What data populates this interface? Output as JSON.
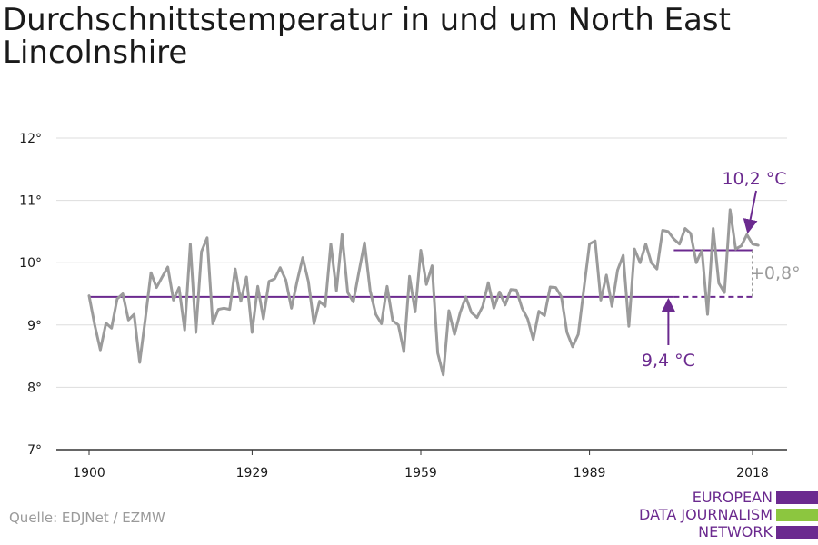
{
  "title": {
    "line1": "Durchschnittstemperatur in und um North East",
    "line2": "Lincolnshire"
  },
  "source": "Quelle: EDJNet / EZMW",
  "logo": {
    "lines": [
      "EUROPEAN",
      "DATA JOURNALISM",
      "NETWORK"
    ],
    "colors": [
      "#6b2a8f",
      "#8cc63f",
      "#6b2a8f"
    ]
  },
  "colors": {
    "series": "#9b9b9b",
    "accent": "#6b2a8f",
    "grid": "#dddddd",
    "axis": "#333333",
    "text": "#1a1a1a"
  },
  "chart_data": {
    "type": "line",
    "title": "Durchschnittstemperatur in und um North East Lincolnshire",
    "xlabel": "",
    "ylabel": "",
    "xlim": [
      1896,
      2024
    ],
    "ylim": [
      7,
      12
    ],
    "grid": true,
    "x_ticks": [
      1900,
      1929,
      1959,
      1989,
      2018
    ],
    "y_ticks": [
      {
        "value": 7,
        "label": "7°"
      },
      {
        "value": 8,
        "label": "8°"
      },
      {
        "value": 9,
        "label": "9°"
      },
      {
        "value": 10,
        "label": "10°"
      },
      {
        "value": 11,
        "label": "11°"
      },
      {
        "value": 12,
        "label": "12°"
      }
    ],
    "series": [
      {
        "x": [
          1900,
          1901,
          1902,
          1903,
          1904,
          1905,
          1906,
          1907,
          1908,
          1909,
          1910,
          1911,
          1912,
          1913,
          1914,
          1915,
          1916,
          1917,
          1918,
          1919,
          1920,
          1921,
          1922,
          1923,
          1924,
          1925,
          1926,
          1927,
          1928,
          1929,
          1930,
          1931,
          1932,
          1933,
          1934,
          1935,
          1936,
          1937,
          1938,
          1939,
          1940,
          1941,
          1942,
          1943,
          1944,
          1945,
          1946,
          1947,
          1948,
          1949,
          1950,
          1951,
          1952,
          1953,
          1954,
          1955,
          1956,
          1957,
          1958,
          1959,
          1960,
          1961,
          1962,
          1963,
          1964,
          1965,
          1966,
          1967,
          1968,
          1969,
          1970,
          1971,
          1972,
          1973,
          1974,
          1975,
          1976,
          1977,
          1978,
          1979,
          1980,
          1981,
          1982,
          1983,
          1984,
          1985,
          1986,
          1987,
          1988,
          1989,
          1990,
          1991,
          1992,
          1993,
          1994,
          1995,
          1996,
          1997,
          1998,
          1999,
          2000,
          2001,
          2002,
          2003,
          2004,
          2005,
          2006,
          2007,
          2008,
          2009,
          2010,
          2011,
          2012,
          2013,
          2014,
          2015,
          2016,
          2017,
          2018,
          2019
        ],
        "values": [
          9.47,
          9.0,
          8.6,
          9.03,
          8.95,
          9.42,
          9.5,
          9.08,
          9.17,
          8.4,
          9.1,
          9.84,
          9.6,
          9.77,
          9.93,
          9.4,
          9.6,
          8.92,
          10.3,
          8.88,
          10.18,
          10.4,
          9.02,
          9.25,
          9.27,
          9.25,
          9.9,
          9.38,
          9.77,
          8.88,
          9.62,
          9.1,
          9.7,
          9.74,
          9.92,
          9.72,
          9.27,
          9.7,
          10.08,
          9.7,
          9.02,
          9.38,
          9.3,
          10.3,
          9.55,
          10.45,
          9.52,
          9.37,
          9.85,
          10.32,
          9.55,
          9.17,
          9.02,
          9.62,
          9.07,
          9.0,
          8.57,
          9.78,
          9.21,
          10.2,
          9.65,
          9.95,
          8.55,
          8.2,
          9.23,
          8.85,
          9.2,
          9.45,
          9.2,
          9.12,
          9.3,
          9.68,
          9.27,
          9.53,
          9.32,
          9.57,
          9.56,
          9.27,
          9.1,
          8.77,
          9.22,
          9.15,
          9.61,
          9.6,
          9.45,
          8.88,
          8.65,
          8.85,
          9.58,
          10.3,
          10.35,
          9.4,
          9.8,
          9.3,
          9.88,
          10.12,
          8.98,
          10.22,
          10.0,
          10.3,
          10.0,
          9.9,
          10.52,
          10.5,
          10.38,
          10.3,
          10.55,
          10.47,
          10.0,
          10.2,
          9.17,
          10.55,
          9.67,
          9.52,
          10.85,
          10.22,
          10.27,
          10.45,
          10.3,
          10.28
        ]
      }
    ],
    "reference_lines": [
      {
        "label": "9,4 °C",
        "value": 9.45,
        "from": 1900,
        "solid_to": 2004,
        "dashed_to": 2018
      },
      {
        "label": "10,2 °C",
        "value": 10.2,
        "from": 2004,
        "to": 2018
      }
    ],
    "difference_label": "+0,8°"
  }
}
